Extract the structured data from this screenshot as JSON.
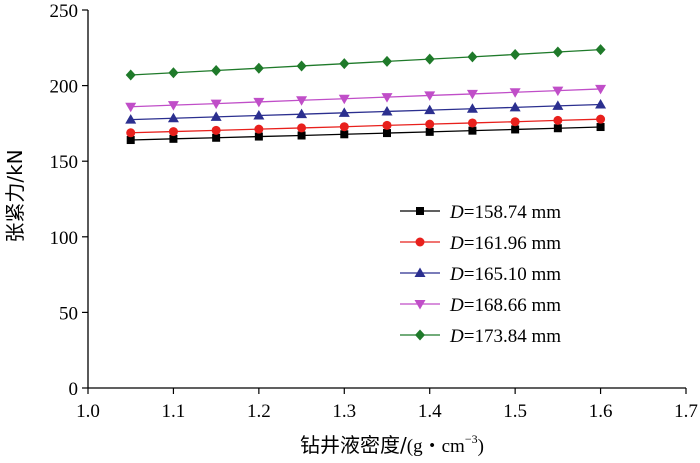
{
  "chart_data": {
    "type": "line",
    "xlabel_main": "钻井液密度/",
    "xlabel_unit": "(g・cm",
    "xlabel_sup": "−3",
    "xlabel_close": ")",
    "ylabel": "张紧力/kN",
    "xlim": [
      1.0,
      1.7
    ],
    "ylim": [
      0,
      250
    ],
    "x_ticks": [
      "1.0",
      "1.1",
      "1.2",
      "1.3",
      "1.4",
      "1.5",
      "1.6",
      "1.7"
    ],
    "y_ticks": [
      "0",
      "50",
      "100",
      "150",
      "200",
      "250"
    ],
    "legend_position": "center-right",
    "x": [
      1.05,
      1.1,
      1.15,
      1.2,
      1.25,
      1.3,
      1.35,
      1.4,
      1.45,
      1.5,
      1.55,
      1.6
    ],
    "series": [
      {
        "var": "D",
        "name": "=158.74 mm",
        "color": "#000000",
        "marker": "square",
        "values": [
          164.0,
          164.8,
          165.5,
          166.3,
          167.0,
          167.8,
          168.6,
          169.4,
          170.2,
          171.0,
          171.8,
          172.6
        ]
      },
      {
        "var": "D",
        "name": "=161.96 mm",
        "color": "#e8201c",
        "marker": "circle",
        "values": [
          168.8,
          169.6,
          170.4,
          171.2,
          172.0,
          172.8,
          173.7,
          174.5,
          175.3,
          176.1,
          177.0,
          177.8
        ]
      },
      {
        "var": "D",
        "name": "=165.10 mm",
        "color": "#2b2f8f",
        "marker": "triangle-up",
        "values": [
          177.5,
          178.4,
          179.3,
          180.2,
          181.1,
          182.0,
          182.9,
          183.8,
          184.7,
          185.6,
          186.6,
          187.5
        ]
      },
      {
        "var": "D",
        "name": "=168.66 mm",
        "color": "#c04ec8",
        "marker": "triangle-down",
        "values": [
          186.0,
          187.1,
          188.1,
          189.2,
          190.3,
          191.3,
          192.4,
          193.5,
          194.5,
          195.6,
          196.7,
          197.8
        ]
      },
      {
        "var": "D",
        "name": "=173.84 mm",
        "color": "#1f7a2a",
        "marker": "diamond",
        "values": [
          207.0,
          208.5,
          210.0,
          211.5,
          213.0,
          214.5,
          216.0,
          217.5,
          219.0,
          220.6,
          222.2,
          223.8
        ]
      }
    ]
  }
}
